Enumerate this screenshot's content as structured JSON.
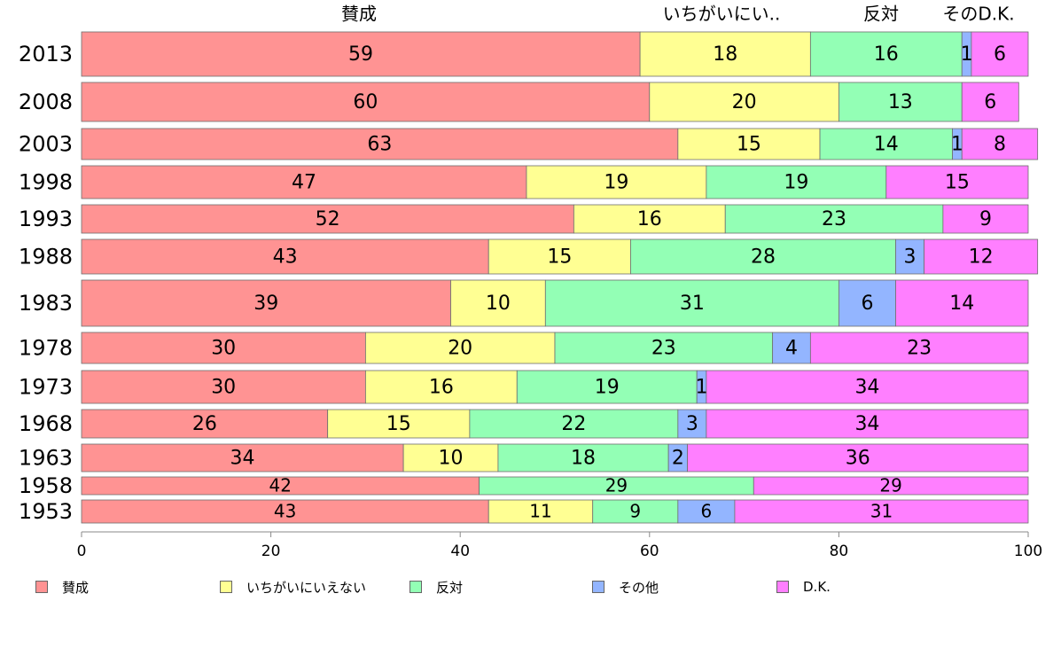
{
  "chart_data": {
    "type": "bar",
    "orientation": "horizontal",
    "stacked": true,
    "categories": [
      "2013",
      "2008",
      "2003",
      "1998",
      "1993",
      "1988",
      "1983",
      "1978",
      "1973",
      "1968",
      "1963",
      "1958",
      "1953"
    ],
    "series": [
      {
        "name": "賛成",
        "short_label": "賛成",
        "color": "#ff9393",
        "values": [
          59,
          60,
          63,
          47,
          52,
          43,
          39,
          30,
          30,
          26,
          34,
          42,
          43
        ]
      },
      {
        "name": "いちがいにいえない",
        "short_label": "いちがいにい..",
        "color": "#ffff93",
        "values": [
          18,
          20,
          15,
          19,
          16,
          15,
          10,
          20,
          16,
          15,
          10,
          0,
          11
        ]
      },
      {
        "name": "反対",
        "short_label": "反対",
        "color": "#93ffb5",
        "values": [
          16,
          13,
          14,
          19,
          23,
          28,
          31,
          23,
          19,
          22,
          18,
          29,
          9
        ]
      },
      {
        "name": "その他",
        "short_label": "その",
        "color": "#93b5ff",
        "values": [
          1,
          0,
          1,
          0,
          0,
          3,
          6,
          4,
          1,
          3,
          2,
          0,
          6
        ]
      },
      {
        "name": "D.K.",
        "short_label": "D.K.",
        "color": "#ff7fff",
        "values": [
          6,
          6,
          8,
          15,
          9,
          12,
          14,
          23,
          34,
          34,
          36,
          29,
          31
        ]
      }
    ],
    "xlim": [
      0,
      100
    ],
    "xticks": [
      0,
      20,
      40,
      60,
      80,
      100
    ],
    "grid": false,
    "legend_position": "bottom"
  }
}
